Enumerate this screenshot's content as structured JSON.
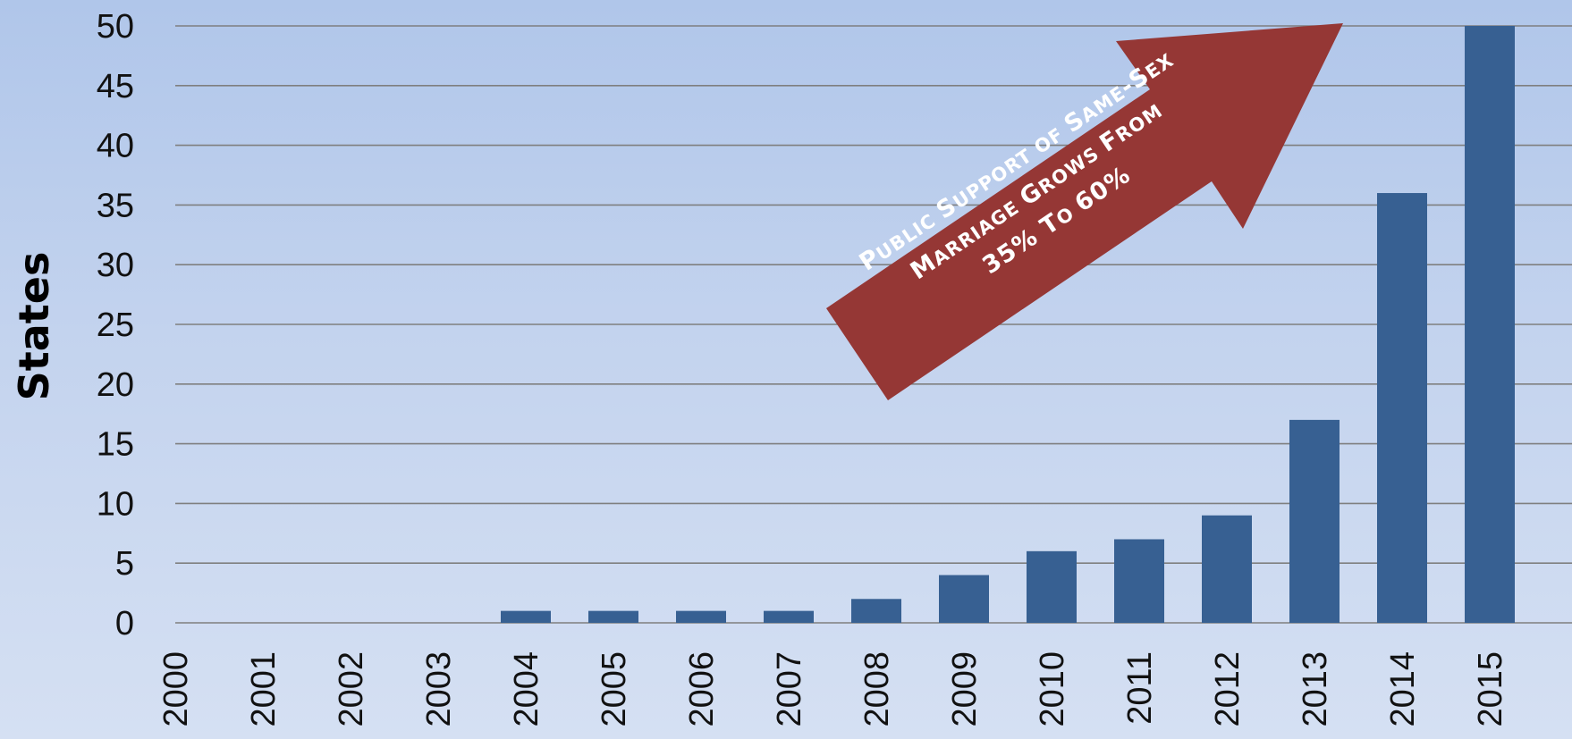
{
  "chart_data": {
    "type": "bar",
    "title": "",
    "xlabel": "",
    "ylabel": "States",
    "ylim": [
      0,
      50
    ],
    "yticks": [
      0,
      5,
      10,
      15,
      20,
      25,
      30,
      35,
      40,
      45,
      50
    ],
    "categories": [
      "2000",
      "2001",
      "2002",
      "2003",
      "2004",
      "2005",
      "2006",
      "2007",
      "2008",
      "2009",
      "2010",
      "2011",
      "2012",
      "2013",
      "2014",
      "2015"
    ],
    "values": [
      0,
      0,
      0,
      0,
      1,
      1,
      1,
      1,
      2,
      4,
      6,
      7,
      9,
      17,
      36,
      50
    ],
    "grid": true,
    "legend": "none",
    "colors": {
      "bar": "#376092",
      "gridline": "#7f7f7f",
      "arrow": "#953735",
      "arrow_text": "#ffffff"
    },
    "annotation": {
      "lines": [
        [
          {
            "text": "P",
            "size": "big"
          },
          {
            "text": "UBLIC ",
            "size": "small"
          },
          {
            "text": "S",
            "size": "big"
          },
          {
            "text": "UPPORT OF ",
            "size": "small"
          },
          {
            "text": "S",
            "size": "big"
          },
          {
            "text": "AME",
            "size": "small"
          },
          {
            "text": "-S",
            "size": "big"
          },
          {
            "text": "EX",
            "size": "small"
          }
        ],
        [
          {
            "text": "M",
            "size": "big"
          },
          {
            "text": "ARRIAGE ",
            "size": "small"
          },
          {
            "text": "G",
            "size": "big"
          },
          {
            "text": "ROWS ",
            "size": "small"
          },
          {
            "text": "F",
            "size": "big"
          },
          {
            "text": "ROM",
            "size": "small"
          }
        ],
        [
          {
            "text": "35% T",
            "size": "big"
          },
          {
            "text": "O ",
            "size": "small"
          },
          {
            "text": "60%",
            "size": "big"
          }
        ]
      ]
    }
  }
}
